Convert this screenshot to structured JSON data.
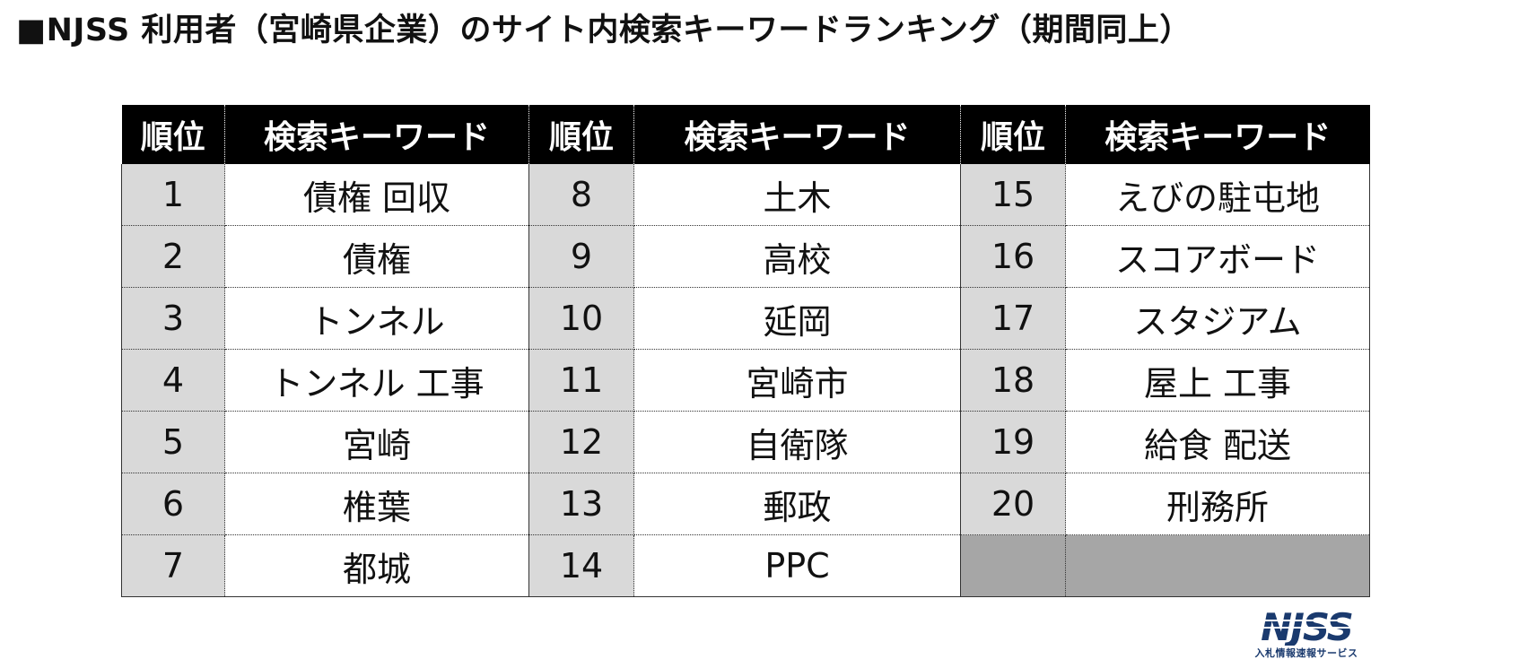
{
  "page": {
    "title": "■NJSS 利用者（宮崎県企業）のサイト内検索キーワードランキング（期間同上）"
  },
  "table": {
    "headers": [
      "順位",
      "検索キーワード",
      "順位",
      "検索キーワード",
      "順位",
      "検索キーワード"
    ],
    "rows": [
      [
        {
          "rank": "1",
          "keyword": "債権 回収"
        },
        {
          "rank": "8",
          "keyword": "土木"
        },
        {
          "rank": "15",
          "keyword": "えびの駐屯地"
        }
      ],
      [
        {
          "rank": "2",
          "keyword": "債権"
        },
        {
          "rank": "9",
          "keyword": "高校"
        },
        {
          "rank": "16",
          "keyword": "スコアボード"
        }
      ],
      [
        {
          "rank": "3",
          "keyword": "トンネル"
        },
        {
          "rank": "10",
          "keyword": "延岡"
        },
        {
          "rank": "17",
          "keyword": "スタジアム"
        }
      ],
      [
        {
          "rank": "4",
          "keyword": "トンネル 工事"
        },
        {
          "rank": "11",
          "keyword": "宮崎市"
        },
        {
          "rank": "18",
          "keyword": "屋上 工事"
        }
      ],
      [
        {
          "rank": "5",
          "keyword": "宮崎"
        },
        {
          "rank": "12",
          "keyword": "自衛隊"
        },
        {
          "rank": "19",
          "keyword": "給食 配送"
        }
      ],
      [
        {
          "rank": "6",
          "keyword": "椎葉"
        },
        {
          "rank": "13",
          "keyword": "郵政"
        },
        {
          "rank": "20",
          "keyword": "刑務所"
        }
      ],
      [
        {
          "rank": "7",
          "keyword": "都城"
        },
        {
          "rank": "14",
          "keyword": "PPC"
        },
        {
          "rank": "",
          "keyword": ""
        }
      ]
    ]
  },
  "logo": {
    "text": "NJSS",
    "subtitle": "入札情報速報サービス",
    "color": "#1a3a6e"
  },
  "colors": {
    "header_bg": "#000000",
    "rank_bg": "#d9d9d9",
    "empty_bg": "#a6a6a6"
  }
}
